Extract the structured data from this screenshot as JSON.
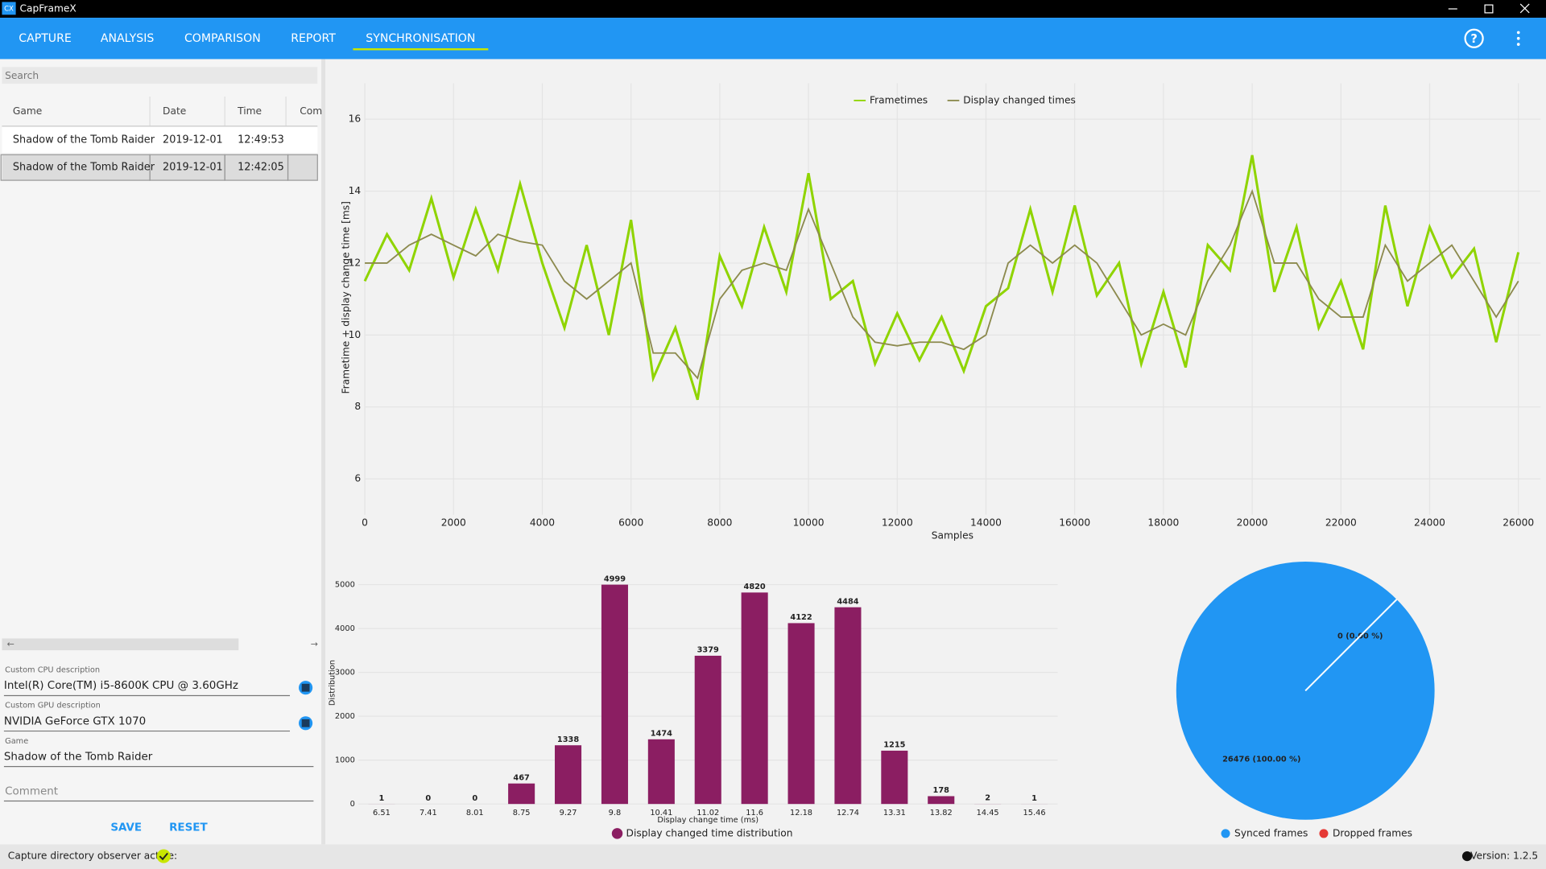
{
  "window": {
    "icon": "CX",
    "title": "CapFrameX"
  },
  "tabs": [
    "CAPTURE",
    "ANALYSIS",
    "COMPARISON",
    "REPORT",
    "SYNCHRONISATION"
  ],
  "active_tab": 4,
  "sidebar": {
    "search_placeholder": "Search",
    "columns": [
      "Game",
      "Date",
      "Time",
      "Com"
    ],
    "rows": [
      [
        "Shadow of the Tomb Raider",
        "2019-12-01",
        "12:49:53"
      ],
      [
        "Shadow of the Tomb Raider",
        "2019-12-01",
        "12:42:05"
      ]
    ],
    "selected_row": 1,
    "fields": [
      {
        "label": "Custom CPU description",
        "value": "Intel(R) Core(TM) i5-8600K CPU @ 3.60GHz"
      },
      {
        "label": "Custom GPU description",
        "value": "NVIDIA GeForce GTX 1070"
      },
      {
        "label": "Game",
        "value": "Shadow of the Tomb Raider"
      }
    ],
    "comment_placeholder": "Comment",
    "buttons": [
      "SAVE",
      "RESET"
    ]
  },
  "status": {
    "observer": "Capture directory observer active:",
    "version": "Version: 1.2.5"
  },
  "chart_data": [
    {
      "type": "line",
      "x_label": "Samples",
      "y_label": "Frametime + display change time [ms]",
      "x": [
        0,
        500,
        1000,
        1500,
        2000,
        2500,
        3000,
        3500,
        4000,
        4500,
        5000,
        5500,
        6000,
        6500,
        7000,
        7500,
        8000,
        8500,
        9000,
        9500,
        10000,
        10500,
        11000,
        11500,
        12000,
        12500,
        13000,
        13500,
        14000,
        14500,
        15000,
        15500,
        16000,
        16500,
        17000,
        17500,
        18000,
        18500,
        19000,
        19500,
        20000,
        20500,
        21000,
        21500,
        22000,
        22500,
        23000,
        23500,
        24000,
        24500,
        25000,
        25500,
        26000
      ],
      "series": [
        {
          "name": "Frametimes",
          "color": "#8fd400",
          "values": [
            11.5,
            12.8,
            11.8,
            13.8,
            11.6,
            13.5,
            11.8,
            14.2,
            12,
            10.2,
            12.5,
            10,
            13.2,
            8.8,
            10.2,
            8.2,
            12.2,
            10.8,
            13,
            11.2,
            14.5,
            11,
            11.5,
            9.2,
            10.6,
            9.3,
            10.5,
            9,
            10.8,
            11.3,
            13.5,
            11.2,
            13.6,
            11.1,
            12,
            9.2,
            11.2,
            9.1,
            12.5,
            11.8,
            15,
            11.2,
            13,
            10.2,
            11.5,
            9.6,
            13.6,
            10.8,
            13,
            11.6,
            12.4,
            9.8,
            12.3
          ]
        },
        {
          "name": "Display changed times",
          "color": "#8c8a4e",
          "values": [
            12,
            12,
            12.5,
            12.8,
            12.5,
            12.2,
            12.8,
            12.6,
            12.5,
            11.5,
            11,
            11.5,
            12,
            9.5,
            9.5,
            8.8,
            11,
            11.8,
            12,
            11.8,
            13.5,
            12,
            10.5,
            9.8,
            9.7,
            9.8,
            9.8,
            9.6,
            10,
            12,
            12.5,
            12,
            12.5,
            12,
            11,
            10,
            10.3,
            10,
            11.5,
            12.5,
            14,
            12,
            12,
            11,
            10.5,
            10.5,
            12.5,
            11.5,
            12,
            12.5,
            11.5,
            10.5,
            11.5
          ]
        }
      ],
      "xlim": [
        0,
        26500
      ],
      "ylim": [
        5,
        17
      ],
      "xticks": [
        0,
        2000,
        4000,
        6000,
        8000,
        10000,
        12000,
        14000,
        16000,
        18000,
        20000,
        22000,
        24000,
        26000
      ],
      "yticks": [
        6,
        8,
        10,
        12,
        14,
        16
      ],
      "grid": true,
      "legend": "top"
    },
    {
      "type": "bar",
      "x_label": "Display change time (ms)",
      "y_label": "Distribution",
      "categories": [
        "6.51",
        "7.41",
        "8.01",
        "8.75",
        "9.27",
        "9.8",
        "10.41",
        "11.02",
        "11.6",
        "12.18",
        "12.74",
        "13.31",
        "13.82",
        "14.45",
        "15.46"
      ],
      "series": [
        {
          "name": "Display changed time distribution",
          "color": "#8b1e62",
          "values": [
            1,
            0,
            0,
            467,
            1338,
            4999,
            1474,
            3379,
            4820,
            4122,
            4484,
            1215,
            178,
            2,
            1
          ]
        }
      ],
      "ylim": [
        0,
        5300
      ],
      "yticks": [
        0,
        1000,
        2000,
        3000,
        4000,
        5000
      ],
      "grid": true,
      "data_labels": true,
      "legend": "bottom"
    },
    {
      "type": "pie",
      "categories": [
        "Synced frames",
        "Dropped frames"
      ],
      "values": [
        26476,
        0
      ],
      "value_labels": [
        "26476 (100.00 %)",
        "0 (0.00 %)"
      ],
      "colors": [
        "#2196f3",
        "#e53935"
      ],
      "start_angle": 45,
      "legend": "bottom"
    }
  ]
}
